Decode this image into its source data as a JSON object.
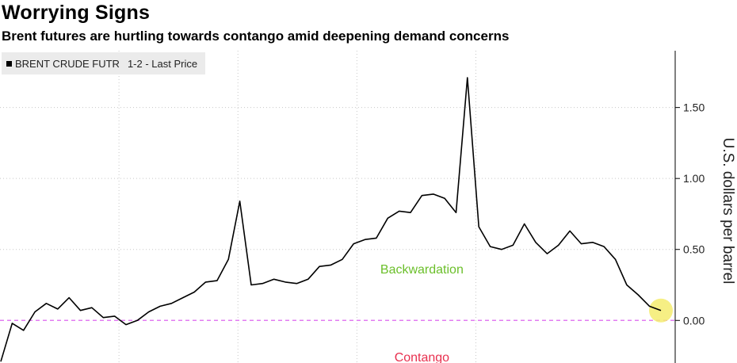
{
  "header": {
    "title": "Worrying Signs",
    "subtitle": "Brent futures are hurtling towards contango amid deepening demand concerns"
  },
  "legend": {
    "series_name": "BRENT CRUDE FUTR",
    "series_detail": "1-2 - Last Price"
  },
  "colors": {
    "line": "#000000",
    "zero_line": "#e27cf2",
    "backwardation": "#6bbf2a",
    "contango": "#e8304f",
    "marker": "#f5ec6e",
    "grid": "#c8c8c8"
  },
  "chart_data": {
    "type": "line",
    "title": "Worrying Signs",
    "subtitle": "Brent futures are hurtling towards contango amid deepening demand concerns",
    "ylabel": "U.S. dollars per barrel",
    "ylim": [
      -0.3,
      1.9
    ],
    "yticks": [
      0.0,
      0.5,
      1.0,
      1.5
    ],
    "ytick_labels": [
      "0.00",
      "0.50",
      "1.00",
      "1.50"
    ],
    "grid": true,
    "legend_position": "top-left",
    "series": [
      {
        "name": "BRENT CRUDE FUTR 1-2 - Last Price",
        "values": [
          -0.29,
          -0.02,
          -0.07,
          0.06,
          0.12,
          0.08,
          0.16,
          0.07,
          0.09,
          0.02,
          0.03,
          -0.03,
          0.0,
          0.06,
          0.1,
          0.12,
          0.16,
          0.2,
          0.27,
          0.28,
          0.43,
          0.84,
          0.25,
          0.26,
          0.29,
          0.27,
          0.26,
          0.29,
          0.38,
          0.39,
          0.43,
          0.54,
          0.57,
          0.58,
          0.72,
          0.77,
          0.76,
          0.88,
          0.89,
          0.86,
          0.76,
          1.71,
          0.66,
          0.52,
          0.5,
          0.53,
          0.68,
          0.55,
          0.47,
          0.53,
          0.63,
          0.54,
          0.55,
          0.52,
          0.43,
          0.25,
          0.18,
          0.1,
          0.07
        ]
      }
    ],
    "reference_line": {
      "value": 0.0,
      "style": "dashed"
    },
    "annotations": [
      {
        "text": "Backwardation",
        "x": 37,
        "y": 0.33
      },
      {
        "text": "Contango",
        "x": 37,
        "y": -0.29
      }
    ],
    "highlight_last_point": true
  }
}
